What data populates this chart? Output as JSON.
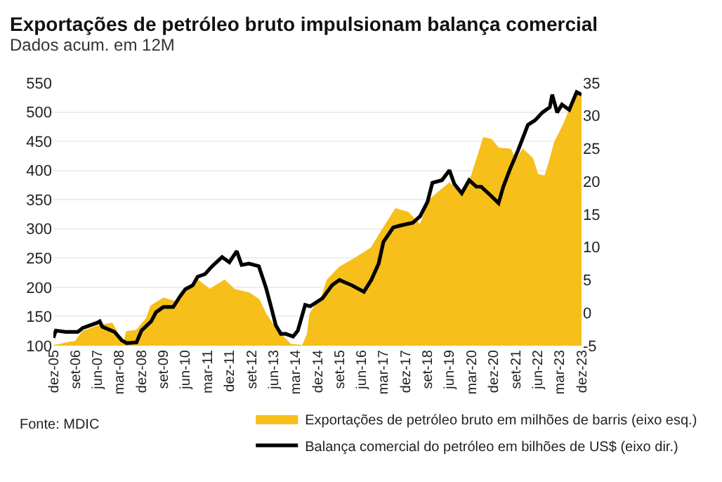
{
  "chart_data": {
    "type": "area",
    "title": "Exportações de petróleo bruto impulsionam balança comercial",
    "subtitle": "Dados acum. em 12M",
    "annotations": [
      "Fonte: MDIC"
    ],
    "xlim": [
      "2005-12",
      "2023-12"
    ],
    "xticks": [
      {
        "value": "2005-12",
        "label": "dez-05"
      },
      {
        "value": "2006-09",
        "label": "set-06"
      },
      {
        "value": "2007-06",
        "label": "jun-07"
      },
      {
        "value": "2008-03",
        "label": "mar-08"
      },
      {
        "value": "2008-12",
        "label": "dez-08"
      },
      {
        "value": "2009-09",
        "label": "set-09"
      },
      {
        "value": "2010-06",
        "label": "jun-10"
      },
      {
        "value": "2011-03",
        "label": "mar-11"
      },
      {
        "value": "2011-12",
        "label": "dez-11"
      },
      {
        "value": "2012-09",
        "label": "set-12"
      },
      {
        "value": "2013-06",
        "label": "jun-13"
      },
      {
        "value": "2014-03",
        "label": "mar-14"
      },
      {
        "value": "2014-12",
        "label": "dez-14"
      },
      {
        "value": "2015-09",
        "label": "set-15"
      },
      {
        "value": "2016-06",
        "label": "jun-16"
      },
      {
        "value": "2017-03",
        "label": "mar-17"
      },
      {
        "value": "2017-12",
        "label": "dez-17"
      },
      {
        "value": "2018-09",
        "label": "set-18"
      },
      {
        "value": "2019-06",
        "label": "jun-19"
      },
      {
        "value": "2020-03",
        "label": "mar-20"
      },
      {
        "value": "2020-12",
        "label": "dez-20"
      },
      {
        "value": "2021-09",
        "label": "set-21"
      },
      {
        "value": "2022-06",
        "label": "jun-22"
      },
      {
        "value": "2023-03",
        "label": "mar-23"
      },
      {
        "value": "2023-12",
        "label": "dez-23"
      }
    ],
    "ylim": [
      100,
      550
    ],
    "yticks": [
      100,
      150,
      200,
      250,
      300,
      350,
      400,
      450,
      500,
      550
    ],
    "y2lim": [
      -5,
      35
    ],
    "y2ticks": [
      -5,
      0,
      5,
      10,
      15,
      20,
      25,
      30,
      35
    ],
    "grid": "y",
    "legend": "bottom",
    "series": [
      {
        "name": "Exportações de petróleo bruto em milhões de barris (eixo esq.)",
        "color": "#f6bf19",
        "x": [
          "2005-12",
          "2006-03",
          "2006-06",
          "2006-09",
          "2006-12",
          "2007-07",
          "2007-12",
          "2008-03",
          "2008-05",
          "2008-06",
          "2008-10",
          "2009-02",
          "2009-04",
          "2009-09",
          "2010-02",
          "2010-06",
          "2010-11",
          "2011-04",
          "2011-10",
          "2012-02",
          "2012-08",
          "2012-12",
          "2013-03",
          "2013-06",
          "2013-10",
          "2014-01",
          "2014-06",
          "2014-08",
          "2014-09",
          "2015-02",
          "2015-04",
          "2015-09",
          "2016-04",
          "2016-10",
          "2017-02",
          "2017-08",
          "2018-01",
          "2018-06",
          "2018-10",
          "2019-01",
          "2019-06",
          "2019-11",
          "2020-03",
          "2020-05",
          "2020-08",
          "2020-11",
          "2021-02",
          "2021-07",
          "2021-09",
          "2021-12",
          "2022-04",
          "2022-06",
          "2022-09",
          "2022-11",
          "2023-01",
          "2023-05",
          "2023-08",
          "2023-10",
          "2023-12"
        ],
        "values": [
          100,
          102,
          105,
          107,
          124,
          135,
          138,
          115,
          106,
          124,
          126,
          146,
          168,
          181,
          175,
          190,
          212,
          196,
          212,
          196,
          190,
          179,
          153,
          135,
          115,
          102,
          100,
          120,
          155,
          186,
          212,
          234,
          251,
          267,
          295,
          334,
          328,
          306,
          350,
          361,
          378,
          357,
          390,
          416,
          456,
          453,
          438,
          436,
          416,
          436,
          420,
          393,
          390,
          416,
          448,
          481,
          513,
          531,
          527
        ]
      },
      {
        "name": "Balança comercial do petróleo em bilhões de US$ (eixo dir.)",
        "type": "line",
        "axis": "y2",
        "color": "#000000",
        "x": [
          "2005-12",
          "2006-01",
          "2006-05",
          "2006-10",
          "2006-12",
          "2007-06",
          "2007-07",
          "2007-08",
          "2008-01",
          "2008-04",
          "2008-06",
          "2008-10",
          "2008-12",
          "2009-04",
          "2009-06",
          "2009-09",
          "2010-01",
          "2010-04",
          "2010-06",
          "2010-09",
          "2010-11",
          "2011-02",
          "2011-05",
          "2011-09",
          "2011-12",
          "2012-03",
          "2012-05",
          "2012-08",
          "2012-12",
          "2013-03",
          "2013-05",
          "2013-07",
          "2013-09",
          "2013-11",
          "2014-02",
          "2014-04",
          "2014-07",
          "2014-09",
          "2015-02",
          "2015-06",
          "2015-09",
          "2016-02",
          "2016-07",
          "2016-10",
          "2017-01",
          "2017-03",
          "2017-07",
          "2017-10",
          "2018-03",
          "2018-06",
          "2018-09",
          "2018-11",
          "2019-03",
          "2019-06",
          "2019-08",
          "2019-11",
          "2020-02",
          "2020-05",
          "2020-07",
          "2020-11",
          "2021-02",
          "2021-04",
          "2021-07",
          "2021-10",
          "2022-02",
          "2022-05",
          "2022-08",
          "2022-11",
          "2022-12",
          "2023-02",
          "2023-04",
          "2023-07",
          "2023-10",
          "2023-12"
        ],
        "values": [
          -3.8,
          -2.7,
          -2.9,
          -2.9,
          -2.3,
          -1.5,
          -1.3,
          -2.1,
          -2.9,
          -4.2,
          -4.6,
          -4.5,
          -2.7,
          -1.3,
          0.1,
          0.9,
          0.9,
          2.6,
          3.6,
          4.2,
          5.5,
          5.9,
          7.1,
          8.5,
          7.7,
          9.4,
          7.3,
          7.5,
          7.1,
          3.8,
          1.0,
          -1.9,
          -3.2,
          -3.2,
          -3.6,
          -2.7,
          1.2,
          1.0,
          2.2,
          4.2,
          5.0,
          4.2,
          3.2,
          5.0,
          7.5,
          10.8,
          13.0,
          13.3,
          13.7,
          14.7,
          16.9,
          19.8,
          20.2,
          21.7,
          19.6,
          18.2,
          20.2,
          19.2,
          19.2,
          17.8,
          16.7,
          19.2,
          22.1,
          24.7,
          28.6,
          29.3,
          30.5,
          31.3,
          33.2,
          30.5,
          31.7,
          30.9,
          33.6,
          33.2
        ]
      }
    ]
  }
}
